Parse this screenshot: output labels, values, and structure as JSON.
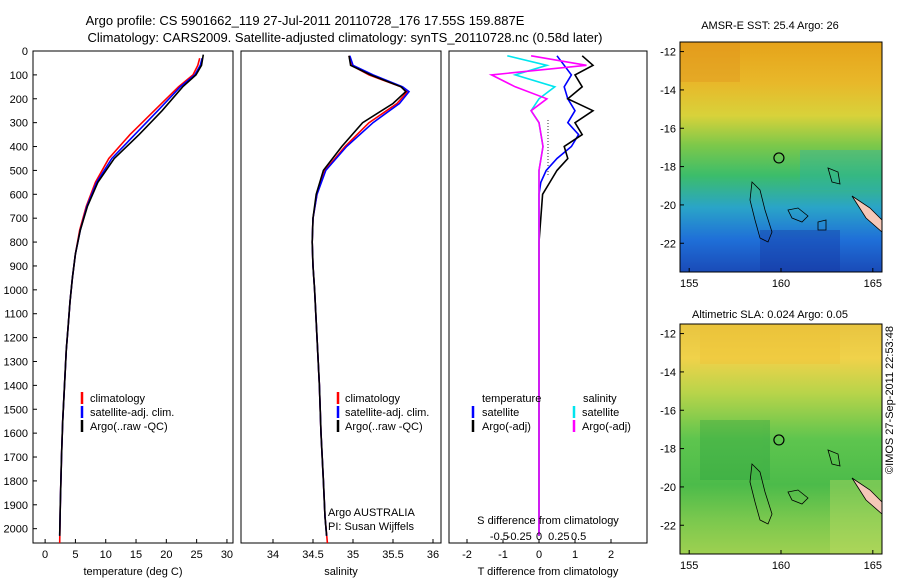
{
  "title_line1": "Argo profile: CS 5901662_119 27-Jul-2011 20110728_176 17.55S 159.887E",
  "title_line2": "Climatology: CARS2009. Satellite-adjusted climatology: synTS_20110728.nc (0.58d later)",
  "depth_ticks": [
    0,
    100,
    200,
    300,
    400,
    500,
    600,
    700,
    800,
    900,
    1000,
    1100,
    1200,
    1300,
    1400,
    1500,
    1600,
    1700,
    1800,
    1900,
    2000
  ],
  "colors": {
    "climatology": "#ff0000",
    "satellite": "#0000ff",
    "argo": "#000000",
    "salinity_satellite": "#00e5ee",
    "salinity_argo": "#ff00ff"
  },
  "temperature_panel": {
    "xlabel": "temperature (deg C)",
    "xlim": [
      -2,
      31
    ],
    "xticks": [
      0,
      5,
      10,
      15,
      20,
      25,
      30
    ],
    "legend": [
      "climatology",
      "satellite-adj. clim.",
      "Argo(..raw -QC)"
    ]
  },
  "salinity_panel": {
    "xlabel": "salinity",
    "xlim": [
      33.6,
      36.1
    ],
    "xticks": [
      "34",
      "34.5",
      "35",
      "35.5",
      "36"
    ],
    "legend": [
      "climatology",
      "satellite-adj. clim.",
      "Argo(..raw -QC)"
    ],
    "annotation_line1": "Argo AUSTRALIA",
    "annotation_line2": "PI: Susan Wijffels"
  },
  "difference_panel": {
    "xlabel": "T difference from climatology",
    "s_label": "S difference from climatology",
    "xticks": [
      "-2",
      "-1",
      "0",
      "1",
      "2"
    ],
    "s_ticks": [
      "-0.5",
      "-0.25",
      "0",
      "0.25",
      "0.5"
    ],
    "legend_temperature_title": "temperature",
    "legend_salinity_title": "salinity",
    "legend_temperature": [
      "satellite",
      "Argo(-adj)"
    ],
    "legend_salinity": [
      "satellite",
      "Argo(-adj)"
    ]
  },
  "sst_map": {
    "title": "AMSR-E SST: 25.4 Argo: 26",
    "yticks": [
      "-12",
      "-14",
      "-16",
      "-18",
      "-20",
      "-22"
    ],
    "xticks": [
      "155",
      "160",
      "165"
    ]
  },
  "sla_map": {
    "title": "Altimetric SLA: 0.024 Argo: 0.05",
    "yticks": [
      "-12",
      "-14",
      "-16",
      "-18",
      "-20",
      "-22"
    ],
    "xticks": [
      "155",
      "160",
      "165"
    ]
  },
  "footer": "©IMOS 27-Sep-2011 22:53:48",
  "chart_data": [
    {
      "type": "line",
      "xlabel": "temperature (deg C)",
      "ylabel": "",
      "ylim": [
        2060,
        0
      ],
      "xlim": [
        -2,
        31
      ],
      "series": [
        {
          "name": "climatology",
          "x": [
            25.5,
            25.2,
            24.4,
            22,
            18,
            14,
            10.5,
            8.3,
            6.8,
            5.7,
            5.0,
            4.5,
            4.1,
            3.8,
            3.5,
            3.3,
            3.1,
            2.9,
            2.7,
            2.5,
            2.4
          ],
          "y": [
            30,
            60,
            100,
            150,
            250,
            350,
            450,
            550,
            650,
            750,
            850,
            950,
            1050,
            1150,
            1250,
            1350,
            1450,
            1550,
            1700,
            1900,
            2060
          ]
        },
        {
          "name": "satellite-adj. clim.",
          "x": [
            25.9,
            25.6,
            24.7,
            22.3,
            18.6,
            14.8,
            11,
            8.5,
            6.9,
            5.8,
            5.0,
            4.5,
            4.1,
            3.8,
            3.5,
            3.3,
            3.1,
            2.9,
            2.7,
            2.5,
            2.4
          ],
          "y": [
            30,
            60,
            100,
            150,
            250,
            350,
            450,
            550,
            650,
            750,
            850,
            950,
            1050,
            1150,
            1250,
            1350,
            1450,
            1550,
            1700,
            1900,
            2030
          ]
        },
        {
          "name": "Argo(..raw -QC)",
          "x": [
            26.1,
            25.8,
            24.9,
            22.7,
            19.3,
            15.5,
            11.4,
            8.7,
            7.0,
            5.8,
            5.0,
            4.5,
            4.1,
            3.8,
            3.5,
            3.3,
            3.1,
            2.9,
            2.7,
            2.5,
            2.4
          ],
          "y": [
            15,
            60,
            100,
            150,
            250,
            350,
            450,
            550,
            650,
            750,
            850,
            950,
            1050,
            1150,
            1250,
            1350,
            1450,
            1550,
            1700,
            1900,
            2030
          ]
        }
      ]
    },
    {
      "type": "line",
      "xlabel": "salinity",
      "ylabel": "",
      "ylim": [
        2060,
        0
      ],
      "xlim": [
        33.6,
        36.1
      ],
      "series": [
        {
          "name": "climatology",
          "x": [
            34.95,
            34.98,
            35.2,
            35.6,
            35.68,
            35.55,
            35.2,
            34.9,
            34.65,
            34.55,
            34.5,
            34.49,
            34.5,
            34.52,
            34.55,
            34.58,
            34.6,
            34.63,
            34.65,
            34.68
          ],
          "y": [
            20,
            60,
            100,
            150,
            170,
            220,
            300,
            400,
            500,
            600,
            700,
            800,
            900,
            1000,
            1200,
            1400,
            1600,
            1800,
            1950,
            2060
          ]
        },
        {
          "name": "satellite-adj. clim.",
          "x": [
            34.96,
            35.0,
            35.25,
            35.62,
            35.7,
            35.58,
            35.25,
            34.92,
            34.66,
            34.55,
            34.5,
            34.49,
            34.5,
            34.52,
            34.55,
            34.58,
            34.6,
            34.63,
            34.65,
            34.67
          ],
          "y": [
            20,
            60,
            100,
            150,
            170,
            220,
            300,
            400,
            500,
            600,
            700,
            800,
            900,
            1000,
            1200,
            1400,
            1600,
            1800,
            1950,
            2030
          ]
        },
        {
          "name": "Argo(..raw -QC)",
          "x": [
            34.95,
            34.97,
            35.22,
            35.6,
            35.66,
            35.5,
            35.12,
            34.86,
            34.63,
            34.54,
            34.5,
            34.49,
            34.5,
            34.52,
            34.55,
            34.58,
            34.6,
            34.63,
            34.65,
            34.67
          ],
          "y": [
            20,
            60,
            100,
            150,
            170,
            220,
            300,
            400,
            500,
            600,
            700,
            800,
            900,
            1000,
            1200,
            1400,
            1600,
            1800,
            1950,
            2030
          ]
        }
      ]
    },
    {
      "type": "line",
      "xlabel": "T difference from climatology",
      "ylabel": "",
      "ylim": [
        2060,
        0
      ],
      "xlim": [
        -2.5,
        3
      ],
      "series": [
        {
          "name": "temperature satellite",
          "x": [
            0.5,
            0.7,
            0.9,
            0.7,
            0.8,
            1.0,
            0.8,
            1.1,
            0.9,
            0.5,
            0.2,
            0.05,
            0.0,
            0.0,
            0.0,
            0.0,
            0.0,
            0.0,
            0.0,
            0.0
          ],
          "y": [
            20,
            60,
            100,
            150,
            200,
            250,
            300,
            350,
            400,
            450,
            500,
            550,
            600,
            700,
            800,
            1000,
            1300,
            1600,
            1800,
            2030
          ]
        },
        {
          "name": "temperature Argo(-adj)",
          "x": [
            1.2,
            1.5,
            1.0,
            1.2,
            0.8,
            1.5,
            1.0,
            1.2,
            0.7,
            0.8,
            0.5,
            0.3,
            0.1,
            0.05,
            0.0,
            0.0,
            0.0,
            0.0,
            0.0,
            0.0
          ],
          "y": [
            20,
            60,
            100,
            150,
            200,
            250,
            300,
            350,
            400,
            450,
            500,
            550,
            600,
            700,
            800,
            1000,
            1300,
            1600,
            1800,
            2030
          ]
        },
        {
          "name": "salinity satellite",
          "x": [
            -0.4,
            0.1,
            -0.3,
            0.2,
            0.0,
            -0.1,
            0.0,
            0.05,
            0.0,
            0.0,
            0.0,
            0.0,
            0.0,
            0.0,
            0.0,
            0.0
          ],
          "y": [
            20,
            60,
            100,
            150,
            200,
            250,
            300,
            400,
            500,
            600,
            700,
            800,
            1000,
            1300,
            1600,
            2030
          ]
        },
        {
          "name": "salinity Argo(-adj)",
          "x": [
            -0.1,
            0.6,
            -0.6,
            -0.3,
            0.1,
            -0.1,
            0.0,
            0.05,
            0.0,
            0.0,
            0.0,
            0.0,
            0.0,
            0.0,
            0.0,
            0.0
          ],
          "y": [
            20,
            60,
            100,
            150,
            200,
            250,
            300,
            400,
            500,
            600,
            700,
            800,
            1000,
            1300,
            1600,
            2030
          ]
        }
      ]
    },
    {
      "type": "heatmap",
      "title": "AMSR-E SST: 25.4 Argo: 26",
      "xlim": [
        154.5,
        165.5
      ],
      "ylim": [
        -23.5,
        -11.5
      ],
      "xticks": [
        155,
        160,
        165
      ],
      "yticks": [
        -12,
        -14,
        -16,
        -18,
        -20,
        -22
      ],
      "marker": {
        "lon": 159.887,
        "lat": -17.55
      }
    },
    {
      "type": "heatmap",
      "title": "Altimetric SLA: 0.024 Argo: 0.05",
      "xlim": [
        154.5,
        165.5
      ],
      "ylim": [
        -23.5,
        -11.5
      ],
      "xticks": [
        155,
        160,
        165
      ],
      "yticks": [
        -12,
        -14,
        -16,
        -18,
        -20,
        -22
      ],
      "marker": {
        "lon": 159.887,
        "lat": -17.55
      }
    }
  ]
}
